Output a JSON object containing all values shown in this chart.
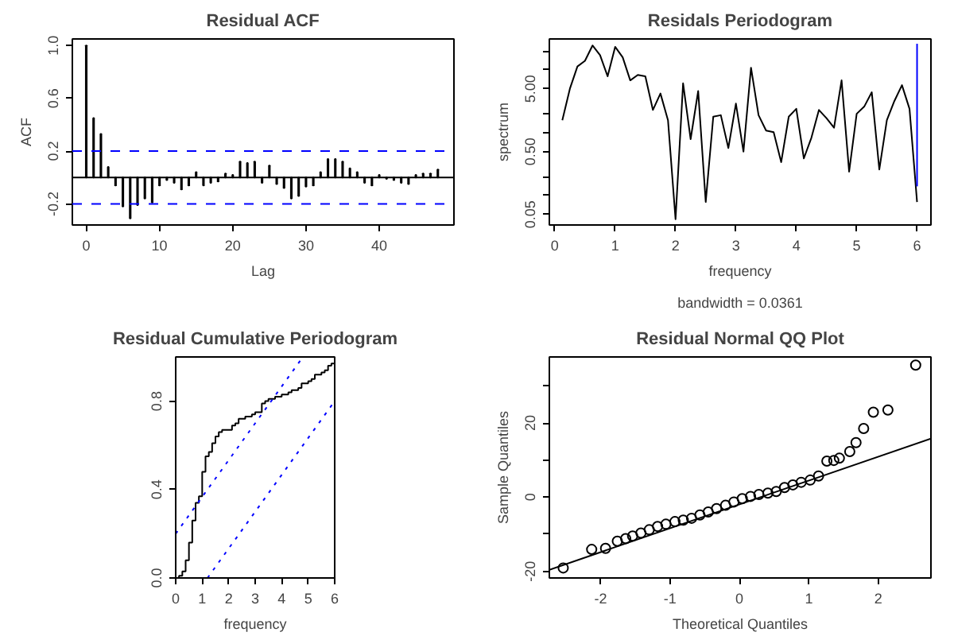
{
  "chart_data": [
    {
      "type": "bar",
      "title": "Residual ACF",
      "xlabel": "Lag",
      "ylabel": "ACF",
      "xlim": [
        -1.9,
        50.2
      ],
      "ylim": [
        -0.36,
        1.05
      ],
      "xticks": [
        0,
        10,
        20,
        30,
        40
      ],
      "yticks": [
        -0.2,
        0.2,
        0.6,
        {
          "value": 1,
          "label": "1.0"
        }
      ],
      "x": [
        0,
        1,
        2,
        3,
        4,
        5,
        6,
        7,
        8,
        9,
        10,
        11,
        12,
        13,
        14,
        15,
        16,
        17,
        18,
        19,
        20,
        21,
        22,
        23,
        24,
        25,
        26,
        27,
        28,
        29,
        30,
        31,
        32,
        33,
        34,
        35,
        36,
        37,
        38,
        39,
        40,
        41,
        42,
        43,
        44,
        45,
        46,
        47,
        48
      ],
      "series": [
        {
          "color": "#000000",
          "values": [
            1.0,
            0.45,
            0.33,
            0.08,
            -0.06,
            -0.22,
            -0.31,
            -0.21,
            -0.16,
            -0.19,
            -0.06,
            -0.02,
            -0.04,
            -0.09,
            -0.06,
            0.04,
            -0.06,
            -0.04,
            -0.03,
            0.03,
            0.02,
            0.12,
            0.11,
            0.12,
            -0.04,
            0.09,
            -0.05,
            -0.08,
            -0.16,
            -0.14,
            -0.07,
            -0.06,
            0.04,
            0.14,
            0.14,
            0.12,
            0.07,
            0.04,
            -0.04,
            -0.06,
            0.02,
            -0.01,
            -0.02,
            -0.04,
            -0.05,
            0.02,
            0.03,
            0.03,
            0.06
          ]
        }
      ],
      "ref_lines": [
        {
          "axis": "y",
          "value": 0,
          "color": "#000000",
          "line_style": "solid"
        },
        {
          "axis": "y",
          "value": 0.2,
          "color": "#0000ff",
          "line_style": "dashed"
        },
        {
          "axis": "y",
          "value": -0.2,
          "color": "#0000ff",
          "line_style": "dashed"
        }
      ]
    },
    {
      "type": "line",
      "title": "Residals Periodogram",
      "xlabel": "frequency",
      "ylabel": "spectrum",
      "log": "y",
      "annotations": [
        "bandwidth = 0.0361"
      ],
      "xlim": [
        -0.09,
        6.23
      ],
      "ylim": [
        0.034,
        31
      ],
      "xticks": [
        0,
        1,
        2,
        3,
        4,
        5,
        6
      ],
      "yticks": [
        {
          "value": 0.05,
          "label": "0.05"
        },
        {
          "value": 0.1,
          "label": null
        },
        {
          "value": 0.2,
          "label": null
        },
        {
          "value": 0.5,
          "label": "0.50"
        },
        {
          "value": 1,
          "label": null
        },
        {
          "value": 2,
          "label": null
        },
        {
          "value": 5,
          "label": "5.00"
        },
        {
          "value": 10,
          "label": null
        },
        {
          "value": 20,
          "label": null
        }
      ],
      "x": [
        0.125,
        0.25,
        0.375,
        0.5,
        0.625,
        0.75,
        0.875,
        1.0,
        1.125,
        1.25,
        1.375,
        1.5,
        1.625,
        1.75,
        1.875,
        2.0,
        2.125,
        2.25,
        2.375,
        2.5,
        2.625,
        2.75,
        2.875,
        3.0,
        3.125,
        3.25,
        3.375,
        3.5,
        3.625,
        3.75,
        3.875,
        4.0,
        4.125,
        4.25,
        4.375,
        4.5,
        4.625,
        4.75,
        4.875,
        5.0,
        5.125,
        5.25,
        5.375,
        5.5,
        5.625,
        5.75,
        5.875,
        6.0
      ],
      "series": [
        {
          "color": "#000000",
          "values": [
            1.58,
            5.0,
            11.3,
            13.9,
            24.4,
            17.1,
            7.9,
            23.2,
            15.8,
            6.8,
            8.3,
            7.9,
            2.3,
            4.2,
            1.58,
            0.042,
            6.1,
            0.79,
            4.6,
            0.079,
            1.8,
            1.9,
            0.57,
            2.9,
            0.5,
            10.8,
            1.9,
            1.08,
            1.02,
            0.34,
            1.8,
            2.4,
            0.39,
            0.83,
            2.3,
            1.7,
            1.2,
            6.8,
            0.24,
            2.0,
            2.6,
            4.4,
            0.26,
            1.58,
            3.2,
            5.7,
            2.4,
            0.079
          ]
        },
        {
          "color": "#0000ff",
          "x": [
            6,
            6
          ],
          "values": [
            0.14,
            26
          ]
        }
      ]
    },
    {
      "type": "step",
      "title": "Residual Cumulative Periodogram",
      "xlabel": "frequency",
      "xlim": [
        0,
        6
      ],
      "ylim": [
        0,
        1
      ],
      "xticks": [
        0,
        1,
        2,
        3,
        4,
        5,
        6
      ],
      "yticks": [
        {
          "value": 0,
          "label": "0.0"
        },
        0.4,
        0.8
      ],
      "x": [
        0,
        0.125,
        0.25,
        0.375,
        0.5,
        0.625,
        0.75,
        0.875,
        1.0,
        1.125,
        1.25,
        1.375,
        1.5,
        1.625,
        1.75,
        1.875,
        2.0,
        2.125,
        2.25,
        2.375,
        2.5,
        2.625,
        2.75,
        2.875,
        3.0,
        3.125,
        3.25,
        3.375,
        3.5,
        3.625,
        3.75,
        3.875,
        4.0,
        4.125,
        4.25,
        4.375,
        4.5,
        4.625,
        4.75,
        4.875,
        5.0,
        5.125,
        5.25,
        5.375,
        5.5,
        5.625,
        5.75,
        5.875,
        6.0
      ],
      "series": [
        {
          "color": "#000000",
          "values": [
            0,
            0.01,
            0.03,
            0.08,
            0.16,
            0.26,
            0.34,
            0.37,
            0.48,
            0.55,
            0.57,
            0.61,
            0.64,
            0.66,
            0.67,
            0.67,
            0.67,
            0.69,
            0.7,
            0.72,
            0.72,
            0.73,
            0.73,
            0.74,
            0.75,
            0.75,
            0.79,
            0.8,
            0.81,
            0.81,
            0.82,
            0.82,
            0.83,
            0.83,
            0.84,
            0.85,
            0.85,
            0.86,
            0.88,
            0.88,
            0.89,
            0.9,
            0.92,
            0.92,
            0.93,
            0.94,
            0.96,
            0.97,
            1.0
          ]
        },
        {
          "type": "line",
          "line_style": "dotted",
          "color": "#0000ff",
          "x": [
            0,
            4.8
          ],
          "values": [
            0.2,
            1.0
          ]
        },
        {
          "type": "line",
          "line_style": "dotted",
          "color": "#0000ff",
          "x": [
            1.2,
            6
          ],
          "values": [
            0,
            0.8
          ]
        }
      ]
    },
    {
      "type": "scatter",
      "title": "Residual Normal QQ Plot",
      "xlabel": "Theoretical Quantiles",
      "ylabel": "Sample Quantiles",
      "xlim": [
        -2.74,
        2.76
      ],
      "ylim": [
        -21.8,
        37.8
      ],
      "xticks": [
        -2,
        -1,
        0,
        1,
        2
      ],
      "yticks": [
        -20,
        {
          "value": -10,
          "label": null
        },
        0,
        {
          "value": 10,
          "label": null
        },
        20,
        {
          "value": 30,
          "label": null
        }
      ],
      "series": [
        {
          "color": "#000000",
          "marker": "circle",
          "x": [
            -2.54,
            -2.13,
            -1.93,
            -1.76,
            -1.64,
            -1.54,
            -1.42,
            -1.3,
            -1.18,
            -1.06,
            -0.93,
            -0.81,
            -0.69,
            -0.57,
            -0.45,
            -0.33,
            -0.2,
            -0.08,
            0.04,
            0.16,
            0.28,
            0.41,
            0.53,
            0.65,
            0.77,
            0.89,
            1.02,
            1.14,
            1.26,
            1.36,
            1.44,
            1.59,
            1.68,
            1.79,
            1.93,
            2.14,
            2.54
          ],
          "values": [
            -19.1,
            -14.1,
            -13.8,
            -11.9,
            -11.2,
            -10.5,
            -9.7,
            -8.8,
            -7.9,
            -7.3,
            -6.6,
            -6.2,
            -5.7,
            -4.8,
            -4.0,
            -3.1,
            -2.2,
            -1.3,
            -0.4,
            0.2,
            0.7,
            1.1,
            1.5,
            2.6,
            3.3,
            4.0,
            4.6,
            5.7,
            9.7,
            9.9,
            10.5,
            12.3,
            14.7,
            18.5,
            22.9,
            23.5,
            35.6
          ]
        },
        {
          "type": "line",
          "color": "#000000",
          "x": [
            -2.74,
            2.76
          ],
          "values": [
            -19.6,
            15.8
          ]
        }
      ]
    }
  ]
}
